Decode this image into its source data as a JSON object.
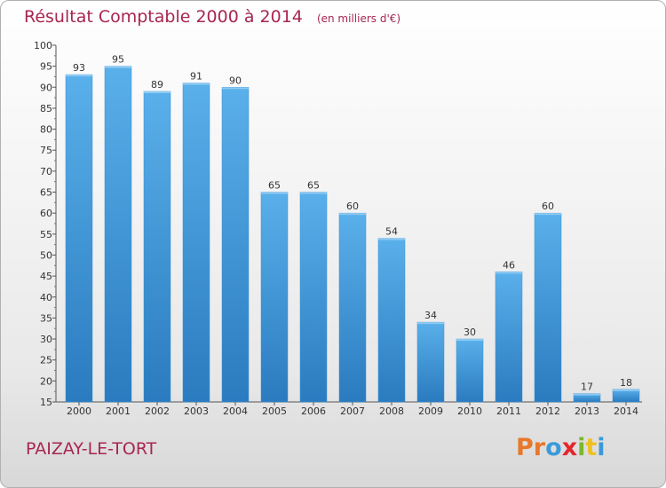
{
  "header": {
    "title": "Résultat Comptable 2000 à 2014",
    "unit": "(en milliers d'€)"
  },
  "footer": {
    "commune": "PAIZAY-LE-TORT",
    "logo_text": "Proxiti",
    "logo_colors": [
      "#e8782a",
      "#e8782a",
      "#3a9ad9",
      "#e3262d",
      "#7cb82f",
      "#f0c020",
      "#3a9ad9"
    ]
  },
  "colors": {
    "title": "#a8264f",
    "bar_top": "#5ab0ea",
    "bar_bottom": "#2a7bbf"
  },
  "chart_data": {
    "type": "bar",
    "title": "Résultat Comptable 2000 à 2014",
    "categories": [
      "2000",
      "2001",
      "2002",
      "2003",
      "2004",
      "2005",
      "2006",
      "2007",
      "2008",
      "2009",
      "2010",
      "2011",
      "2012",
      "2013",
      "2014"
    ],
    "values": [
      93,
      95,
      89,
      91,
      90,
      65,
      65,
      60,
      54,
      34,
      30,
      46,
      60,
      17,
      18
    ],
    "ylim": [
      15,
      100
    ],
    "yticks": [
      15,
      20,
      25,
      30,
      35,
      40,
      45,
      50,
      55,
      60,
      65,
      70,
      75,
      80,
      85,
      90,
      95,
      100
    ],
    "grid": false
  }
}
